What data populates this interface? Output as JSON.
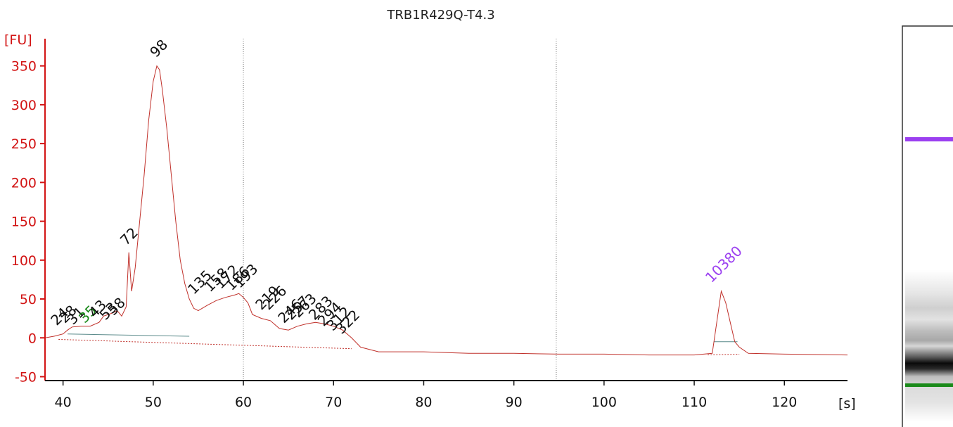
{
  "chart_data": {
    "type": "line",
    "title": "TRB1R429Q-T4.3",
    "ylabel": "[FU]",
    "xlabel": "[s]",
    "xlim": [
      38,
      127
    ],
    "ylim": [
      -55,
      385
    ],
    "x_ticks": [
      40,
      50,
      60,
      70,
      80,
      90,
      100,
      110,
      120
    ],
    "y_ticks": [
      -50,
      0,
      50,
      100,
      150,
      200,
      250,
      300,
      350
    ],
    "grid": false,
    "colors": {
      "axis": "#d21414",
      "trace": "#c0302a",
      "peak_default": "#111111",
      "lower_marker": "#1a8a1a",
      "upper_marker": "#9b3ff0"
    },
    "series": [
      {
        "x": [
          38,
          39,
          40,
          40.5,
          41,
          42,
          43,
          44,
          44.5,
          45,
          45.5,
          46,
          46.5,
          47,
          47.3,
          47.6,
          48,
          48.5,
          49,
          49.5,
          50,
          50.4,
          50.7,
          51,
          51.5,
          52,
          52.5,
          53,
          53.5,
          54,
          54.5,
          55,
          56,
          57,
          58,
          59,
          59.5,
          60,
          60.5,
          61,
          62,
          63,
          64,
          65,
          66,
          67,
          68,
          69,
          70,
          71,
          72,
          73,
          75,
          80,
          85,
          90,
          95,
          100,
          105,
          110,
          112,
          112.5,
          113,
          113.5,
          114,
          114.5,
          115,
          116,
          120,
          127
        ],
        "y": [
          0,
          2,
          5,
          10,
          14,
          15,
          15,
          20,
          28,
          30,
          32,
          35,
          28,
          40,
          110,
          60,
          90,
          150,
          210,
          280,
          330,
          350,
          345,
          320,
          270,
          210,
          150,
          100,
          70,
          50,
          38,
          35,
          42,
          48,
          52,
          55,
          57,
          52,
          45,
          30,
          25,
          22,
          12,
          10,
          15,
          18,
          20,
          18,
          15,
          10,
          0,
          -12,
          -18,
          -18,
          -20,
          -20,
          -21,
          -21,
          -22,
          -22,
          -20,
          20,
          60,
          45,
          20,
          -5,
          -12,
          -20,
          -21,
          -22
        ]
      }
    ],
    "peaks": [
      {
        "label": "24",
        "x": 39.3,
        "y": 15,
        "color": "#111111"
      },
      {
        "label": "28",
        "x": 40.2,
        "y": 18,
        "color": "#111111"
      },
      {
        "label": "31",
        "x": 41.1,
        "y": 16,
        "color": "#111111"
      },
      {
        "label": "35",
        "x": 42.4,
        "y": 18,
        "color": "#1a8a1a"
      },
      {
        "label": "43",
        "x": 43.5,
        "y": 25,
        "color": "#111111"
      },
      {
        "label": "53",
        "x": 44.7,
        "y": 22,
        "color": "#111111"
      },
      {
        "label": "58",
        "x": 45.6,
        "y": 28,
        "color": "#111111"
      },
      {
        "label": "72",
        "x": 47.0,
        "y": 118,
        "color": "#111111"
      },
      {
        "label": "98",
        "x": 50.3,
        "y": 360,
        "color": "#111111"
      },
      {
        "label": "135",
        "x": 54.5,
        "y": 55,
        "color": "#111111"
      },
      {
        "label": "158",
        "x": 56.3,
        "y": 58,
        "color": "#111111"
      },
      {
        "label": "172",
        "x": 57.5,
        "y": 62,
        "color": "#111111"
      },
      {
        "label": "186",
        "x": 58.7,
        "y": 60,
        "color": "#111111"
      },
      {
        "label": "193",
        "x": 59.6,
        "y": 63,
        "color": "#111111"
      },
      {
        "label": "219",
        "x": 62.0,
        "y": 35,
        "color": "#111111"
      },
      {
        "label": "226",
        "x": 62.8,
        "y": 35,
        "color": "#111111"
      },
      {
        "label": "246",
        "x": 64.5,
        "y": 18,
        "color": "#111111"
      },
      {
        "label": "257",
        "x": 65.3,
        "y": 22,
        "color": "#111111"
      },
      {
        "label": "263",
        "x": 66.1,
        "y": 25,
        "color": "#111111"
      },
      {
        "label": "283",
        "x": 67.9,
        "y": 22,
        "color": "#111111"
      },
      {
        "label": "294",
        "x": 68.9,
        "y": 14,
        "color": "#111111"
      },
      {
        "label": "312",
        "x": 69.9,
        "y": 8,
        "color": "#111111"
      },
      {
        "label": "322",
        "x": 70.9,
        "y": 4,
        "color": "#111111"
      },
      {
        "label": "10380",
        "x": 111.9,
        "y": 70,
        "color": "#9b3ff0"
      }
    ],
    "vertical_lines_x": [
      60,
      94.7
    ]
  },
  "gel": {
    "bands": [
      {
        "size": "10380",
        "color": "#9b3ff0"
      },
      {
        "size": "35",
        "color": "#1a8a1a"
      }
    ]
  }
}
